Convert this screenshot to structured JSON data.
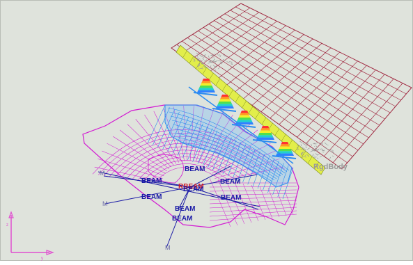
{
  "viewport": {
    "name": "FE model graphics window",
    "background": "#dfe3dc"
  },
  "labels": {
    "beam": "BEAM",
    "rigid_body": "RgdBody",
    "moment": "M",
    "center_label": "RBEAM",
    "axis_z": "z",
    "axis_y": "y"
  },
  "colors": {
    "mesh_magenta": "#d21ad2",
    "mesh_blue": "#2a8cf0",
    "grid_red": "#a02840",
    "flange_yellow": "#e2ee4a",
    "beam_blue": "#1a1aa6",
    "rigid_gray": "#9a9a9a",
    "axis_magenta": "#e050d0"
  }
}
